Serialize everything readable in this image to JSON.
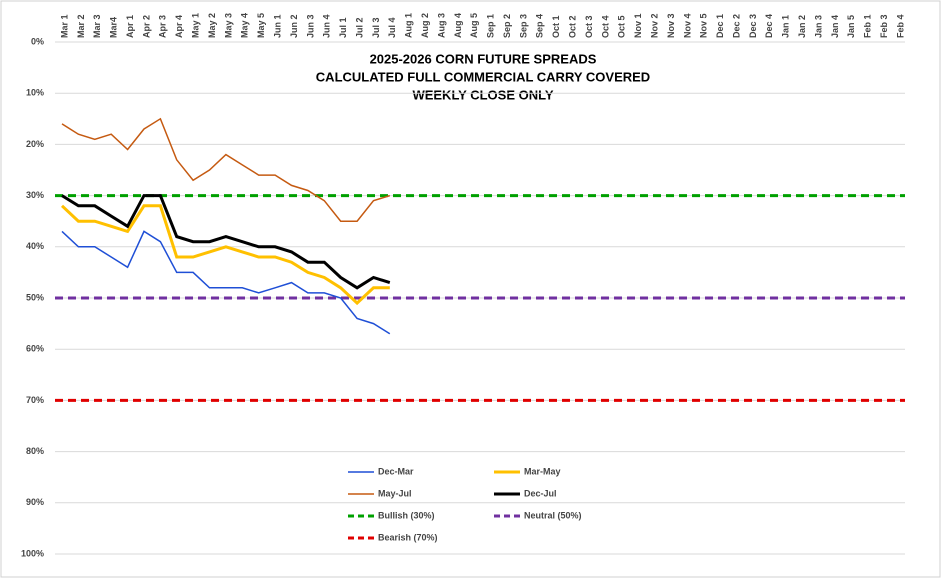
{
  "chart_data": {
    "type": "line",
    "title": [
      "2025-2026 CORN FUTURE SPREADS",
      "CALCULATED FULL COMMERCIAL CARRY COVERED",
      "WEEKLY CLOSE ONLY"
    ],
    "categories": [
      "Mar 1",
      "Mar 2",
      "Mar 3",
      "Mar4",
      "Apr 1",
      "Apr 2",
      "Apr 3",
      "Apr 4",
      "May 1",
      "May 2",
      "May 3",
      "May 4",
      "May 5",
      "Jun 1",
      "Jun 2",
      "Jun 3",
      "Jun 4",
      "Jul 1",
      "Jul 2",
      "Jul 3",
      "Jul 4",
      "Aug 1",
      "Aug 2",
      "Aug 3",
      "Aug 4",
      "Aug 5",
      "Sep 1",
      "Sep 2",
      "Sep 3",
      "Sep 4",
      "Oct 1",
      "Oct 2",
      "Oct 3",
      "Oct 4",
      "Oct 5",
      "Nov 1",
      "Nov 2",
      "Nov 3",
      "Nov 4",
      "Nov 5",
      "Dec 1",
      "Dec 2",
      "Dec 3",
      "Dec 4",
      "Jan 1",
      "Jan 2",
      "Jan 3",
      "Jan 4",
      "Jan 5",
      "Feb 1",
      "Feb 3",
      "Feb 4"
    ],
    "series": [
      {
        "name": "Dec-Mar",
        "color": "#1f4fd6",
        "line_width": 1.5,
        "values": [
          37,
          40,
          40,
          42,
          44,
          37,
          39,
          45,
          45,
          48,
          48,
          48,
          49,
          48,
          47,
          49,
          49,
          50,
          54,
          55,
          57,
          null,
          null,
          null,
          null,
          null,
          null,
          null,
          null,
          null,
          null,
          null,
          null,
          null,
          null,
          null,
          null,
          null,
          null,
          null,
          null,
          null,
          null,
          null,
          null,
          null,
          null,
          null,
          null,
          null,
          null,
          null
        ]
      },
      {
        "name": "Mar-May",
        "color": "#ffc000",
        "line_width": 3,
        "values": [
          32,
          35,
          35,
          36,
          37,
          32,
          32,
          42,
          42,
          41,
          40,
          41,
          42,
          42,
          43,
          45,
          46,
          48,
          51,
          48,
          48,
          null,
          null,
          null,
          null,
          null,
          null,
          null,
          null,
          null,
          null,
          null,
          null,
          null,
          null,
          null,
          null,
          null,
          null,
          null,
          null,
          null,
          null,
          null,
          null,
          null,
          null,
          null,
          null,
          null,
          null,
          null
        ]
      },
      {
        "name": "May-Jul",
        "color": "#c55a11",
        "line_width": 1.5,
        "values": [
          16,
          18,
          19,
          18,
          21,
          17,
          15,
          23,
          27,
          25,
          22,
          24,
          26,
          26,
          28,
          29,
          31,
          35,
          35,
          31,
          30,
          null,
          null,
          null,
          null,
          null,
          null,
          null,
          null,
          null,
          null,
          null,
          null,
          null,
          null,
          null,
          null,
          null,
          null,
          null,
          null,
          null,
          null,
          null,
          null,
          null,
          null,
          null,
          null,
          null,
          null,
          null
        ]
      },
      {
        "name": "Dec-Jul",
        "color": "#000000",
        "line_width": 3,
        "values": [
          30,
          32,
          32,
          34,
          36,
          30,
          30,
          38,
          39,
          39,
          38,
          39,
          40,
          40,
          41,
          43,
          43,
          46,
          48,
          46,
          47,
          null,
          null,
          null,
          null,
          null,
          null,
          null,
          null,
          null,
          null,
          null,
          null,
          null,
          null,
          null,
          null,
          null,
          null,
          null,
          null,
          null,
          null,
          null,
          null,
          null,
          null,
          null,
          null,
          null,
          null,
          null
        ]
      }
    ],
    "reference_lines": [
      {
        "name": "Bullish (30%)",
        "color": "#00a000",
        "value": 30
      },
      {
        "name": "Neutral (50%)",
        "color": "#7030a0",
        "value": 50
      },
      {
        "name": "Bearish (70%)",
        "color": "#e00000",
        "value": 70
      }
    ],
    "ylim": [
      0,
      100
    ],
    "y_inverted": true,
    "yticks": [
      {
        "value": 0,
        "label": "0%"
      },
      {
        "value": 10,
        "label": "10%"
      },
      {
        "value": 20,
        "label": "20%"
      },
      {
        "value": 30,
        "label": "30%"
      },
      {
        "value": 40,
        "label": "40%"
      },
      {
        "value": 50,
        "label": "50%"
      },
      {
        "value": 60,
        "label": "60%"
      },
      {
        "value": 70,
        "label": "70%"
      },
      {
        "value": 80,
        "label": "80%"
      },
      {
        "value": 90,
        "label": "90%"
      },
      {
        "value": 100,
        "label": "100%"
      }
    ],
    "grid": true
  }
}
